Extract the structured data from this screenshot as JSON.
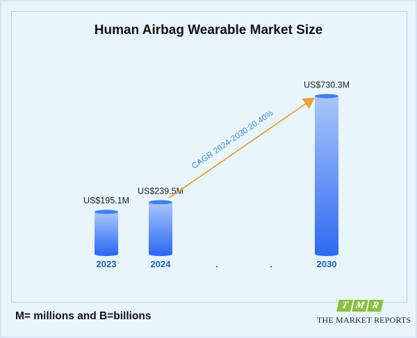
{
  "title": "Human Airbag Wearable Market Size",
  "footnote": "M= millions and B=billions",
  "logo": {
    "letters": [
      "T",
      "M",
      "R"
    ],
    "text": "THE MARKET REPORTS"
  },
  "colors": {
    "background": "#e9f5fc",
    "bar_top": "#a9c6fb",
    "bar_bottom": "#2f6bf2",
    "bar_cap": "#3f7ff0",
    "axis_label": "#1f5fbf",
    "arrow": "#e6a23c",
    "cagr_text": "#3b8fd9",
    "logo_green": "#8cbf3f"
  },
  "chart_data": {
    "type": "bar",
    "title": "Human Airbag Wearable Market Size",
    "categories": [
      "2023",
      "2024",
      ".",
      ".",
      "2030"
    ],
    "values": [
      195.1,
      239.5,
      null,
      null,
      730.3
    ],
    "value_labels": [
      "US$195.1M",
      "US$239.5M",
      "",
      "",
      "US$730.3M"
    ],
    "unit": "US$ million",
    "annotation": {
      "text": "CAGR 2024-2030:20.40%",
      "from": "2024",
      "to": "2030"
    },
    "grid": false,
    "legend": "none"
  }
}
